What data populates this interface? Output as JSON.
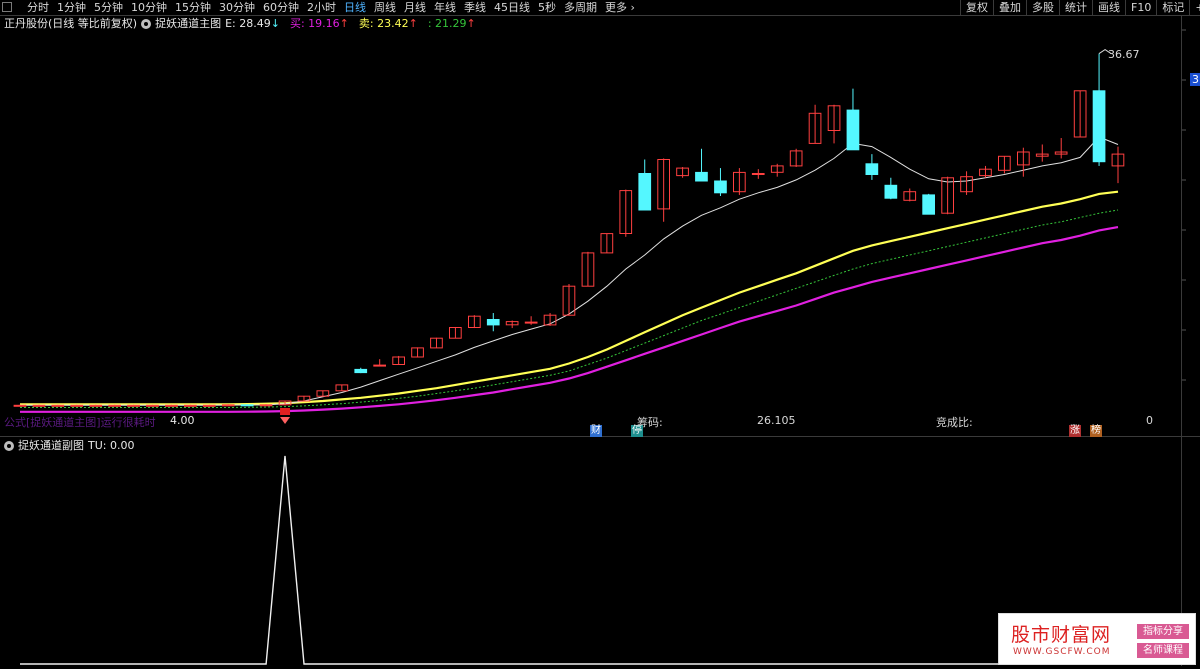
{
  "toolbar": {
    "periods": [
      "分时",
      "1分钟",
      "5分钟",
      "10分钟",
      "15分钟",
      "30分钟",
      "60分钟",
      "2小时",
      "日线",
      "周线",
      "月线",
      "年线",
      "季线",
      "45日线",
      "5秒",
      "多周期",
      "更多 ›"
    ],
    "active_period": "日线",
    "tools": [
      "复权",
      "叠加",
      "多股",
      "统计",
      "画线",
      "F10",
      "标记",
      "+自选"
    ]
  },
  "main_header": {
    "title": "正丹股份(日线 等比前复权)",
    "indicator": "捉妖通道主图",
    "e_label": "E: 28.49",
    "e_arrow": "↓",
    "buy_label": "买: 19.16",
    "buy_arrow": "↑",
    "sell_label": "卖: 23.42",
    "sell_arrow": "↑",
    "extra_label": ": 21.29",
    "extra_arrow": "↑"
  },
  "main_chart": {
    "high_label": "36.67",
    "marker_value": "4.00",
    "formula_text": "公式[捉妖通道主图]运行很耗时",
    "chip_label": "筹码:",
    "chip_value": "26.105",
    "auction_label": "竞成比:",
    "auction_value": "0",
    "badge_cai": "财",
    "badge_ting": "停",
    "badge_zhang": "涨",
    "badge_bang": "榜",
    "edge_value": "3"
  },
  "sub_header": {
    "indicator": "捉妖通道副图",
    "tu_label": "TU: 0.00"
  },
  "watermark": {
    "title": "股市财富网",
    "url": "WWW.GSCFW.COM",
    "tag1": "指标分享",
    "tag2": "名师课程"
  },
  "colors": {
    "up": "#ff4040",
    "down": "#54f7ff",
    "ma_white": "#e0e0e0",
    "yellow": "#ffff55",
    "green": "#35c43a",
    "magenta": "#e020e0",
    "active": "#4fb3ff"
  },
  "chart_data": {
    "type": "candlestick",
    "candles": [
      {
        "o": 3.9,
        "h": 3.95,
        "l": 3.85,
        "c": 3.9
      },
      {
        "o": 3.9,
        "h": 3.95,
        "l": 3.85,
        "c": 3.9
      },
      {
        "o": 3.9,
        "h": 3.95,
        "l": 3.85,
        "c": 3.9
      },
      {
        "o": 3.9,
        "h": 3.95,
        "l": 3.85,
        "c": 3.9
      },
      {
        "o": 3.9,
        "h": 3.95,
        "l": 3.85,
        "c": 3.9
      },
      {
        "o": 3.9,
        "h": 3.95,
        "l": 3.85,
        "c": 3.9
      },
      {
        "o": 3.9,
        "h": 3.95,
        "l": 3.85,
        "c": 3.9
      },
      {
        "o": 3.9,
        "h": 3.95,
        "l": 3.85,
        "c": 3.9
      },
      {
        "o": 3.9,
        "h": 3.95,
        "l": 3.85,
        "c": 3.9
      },
      {
        "o": 3.9,
        "h": 3.95,
        "l": 3.85,
        "c": 3.9
      },
      {
        "o": 3.9,
        "h": 3.95,
        "l": 3.85,
        "c": 3.9
      },
      {
        "o": 3.9,
        "h": 4.0,
        "l": 3.85,
        "c": 3.95
      },
      {
        "o": 3.95,
        "h": 4.0,
        "l": 3.9,
        "c": 3.92
      },
      {
        "o": 3.92,
        "h": 4.0,
        "l": 3.88,
        "c": 3.95
      },
      {
        "o": 3.95,
        "h": 4.3,
        "l": 3.9,
        "c": 4.3
      },
      {
        "o": 4.3,
        "h": 4.75,
        "l": 4.3,
        "c": 4.75
      },
      {
        "o": 4.75,
        "h": 5.25,
        "l": 4.75,
        "c": 5.25
      },
      {
        "o": 5.25,
        "h": 5.8,
        "l": 5.25,
        "c": 5.8
      },
      {
        "o": 7.25,
        "h": 7.4,
        "l": 6.9,
        "c": 6.95
      },
      {
        "o": 7.6,
        "h": 8.2,
        "l": 7.6,
        "c": 7.65
      },
      {
        "o": 7.7,
        "h": 8.5,
        "l": 7.7,
        "c": 8.4
      },
      {
        "o": 8.4,
        "h": 9.3,
        "l": 8.4,
        "c": 9.25
      },
      {
        "o": 9.25,
        "h": 10.2,
        "l": 9.25,
        "c": 10.15
      },
      {
        "o": 10.15,
        "h": 11.2,
        "l": 10.15,
        "c": 11.15
      },
      {
        "o": 11.15,
        "h": 12.3,
        "l": 11.1,
        "c": 12.2
      },
      {
        "o": 11.9,
        "h": 12.5,
        "l": 10.8,
        "c": 11.4
      },
      {
        "o": 11.4,
        "h": 11.8,
        "l": 11.1,
        "c": 11.7
      },
      {
        "o": 11.6,
        "h": 12.2,
        "l": 11.4,
        "c": 11.65
      },
      {
        "o": 11.4,
        "h": 12.5,
        "l": 11.3,
        "c": 12.3
      },
      {
        "o": 12.3,
        "h": 15.2,
        "l": 12.3,
        "c": 15.0
      },
      {
        "o": 15.0,
        "h": 18.2,
        "l": 15.0,
        "c": 18.1
      },
      {
        "o": 18.1,
        "h": 19.9,
        "l": 18.1,
        "c": 19.9
      },
      {
        "o": 19.9,
        "h": 24.0,
        "l": 19.6,
        "c": 23.9
      },
      {
        "o": 25.5,
        "h": 26.8,
        "l": 22.1,
        "c": 22.1
      },
      {
        "o": 22.2,
        "h": 26.9,
        "l": 21.0,
        "c": 26.8
      },
      {
        "o": 25.3,
        "h": 26.1,
        "l": 25.1,
        "c": 26.0
      },
      {
        "o": 25.6,
        "h": 27.8,
        "l": 25.0,
        "c": 24.8
      },
      {
        "o": 24.8,
        "h": 26.0,
        "l": 23.4,
        "c": 23.7
      },
      {
        "o": 23.8,
        "h": 26.0,
        "l": 23.5,
        "c": 25.6
      },
      {
        "o": 25.5,
        "h": 25.9,
        "l": 25.0,
        "c": 25.5
      },
      {
        "o": 25.6,
        "h": 26.4,
        "l": 25.2,
        "c": 26.2
      },
      {
        "o": 26.2,
        "h": 27.8,
        "l": 26.1,
        "c": 27.6
      },
      {
        "o": 28.3,
        "h": 31.9,
        "l": 28.3,
        "c": 31.1
      },
      {
        "o": 29.5,
        "h": 31.9,
        "l": 28.3,
        "c": 31.8
      },
      {
        "o": 31.4,
        "h": 33.4,
        "l": 27.7,
        "c": 27.7
      },
      {
        "o": 26.4,
        "h": 27.3,
        "l": 24.9,
        "c": 25.4
      },
      {
        "o": 24.4,
        "h": 25.1,
        "l": 23.1,
        "c": 23.2
      },
      {
        "o": 23.0,
        "h": 24.1,
        "l": 22.9,
        "c": 23.8
      },
      {
        "o": 23.5,
        "h": 23.6,
        "l": 21.7,
        "c": 21.7
      },
      {
        "o": 21.8,
        "h": 25.2,
        "l": 21.7,
        "c": 25.1
      },
      {
        "o": 23.8,
        "h": 25.7,
        "l": 23.5,
        "c": 25.2
      },
      {
        "o": 25.3,
        "h": 26.2,
        "l": 25.1,
        "c": 25.9
      },
      {
        "o": 25.8,
        "h": 27.1,
        "l": 25.5,
        "c": 27.1
      },
      {
        "o": 26.3,
        "h": 27.9,
        "l": 25.2,
        "c": 27.5
      },
      {
        "o": 27.1,
        "h": 28.2,
        "l": 26.6,
        "c": 27.3
      },
      {
        "o": 27.3,
        "h": 28.8,
        "l": 26.9,
        "c": 27.5
      },
      {
        "o": 28.9,
        "h": 33.2,
        "l": 28.9,
        "c": 33.2
      },
      {
        "o": 33.2,
        "h": 36.67,
        "l": 26.2,
        "c": 26.6
      },
      {
        "o": 26.2,
        "h": 28.0,
        "l": 24.6,
        "c": 27.3
      }
    ],
    "ma_white": [
      3.9,
      3.9,
      3.9,
      3.9,
      3.9,
      3.9,
      3.9,
      3.9,
      3.9,
      3.9,
      3.9,
      3.92,
      3.93,
      3.94,
      4.05,
      4.3,
      4.7,
      5.1,
      5.6,
      6.2,
      6.8,
      7.4,
      8.0,
      8.6,
      9.3,
      9.9,
      10.5,
      11.0,
      11.5,
      12.4,
      13.6,
      15.0,
      16.6,
      17.9,
      19.4,
      20.6,
      21.6,
      22.3,
      23.1,
      23.7,
      24.2,
      24.9,
      25.8,
      26.9,
      28.3,
      28.0,
      27.0,
      25.9,
      25.0,
      24.7,
      24.8,
      25.1,
      25.4,
      25.8,
      26.2,
      26.5,
      27.0,
      28.9,
      28.2
    ],
    "yellow": [
      4.0,
      4.0,
      4.0,
      4.0,
      4.0,
      4.0,
      4.0,
      4.0,
      4.0,
      4.0,
      4.0,
      4.0,
      4.02,
      4.05,
      4.1,
      4.2,
      4.3,
      4.45,
      4.6,
      4.8,
      5.0,
      5.25,
      5.5,
      5.8,
      6.1,
      6.4,
      6.7,
      7.0,
      7.3,
      7.8,
      8.4,
      9.1,
      9.9,
      10.7,
      11.5,
      12.3,
      13.0,
      13.7,
      14.4,
      15.0,
      15.6,
      16.2,
      16.9,
      17.6,
      18.3,
      18.8,
      19.2,
      19.6,
      20.0,
      20.4,
      20.8,
      21.2,
      21.6,
      22.0,
      22.4,
      22.7,
      23.1,
      23.6,
      23.8
    ],
    "green": [
      3.7,
      3.7,
      3.7,
      3.7,
      3.7,
      3.7,
      3.7,
      3.7,
      3.7,
      3.7,
      3.7,
      3.7,
      3.72,
      3.74,
      3.78,
      3.85,
      3.95,
      4.05,
      4.2,
      4.35,
      4.55,
      4.75,
      5.0,
      5.25,
      5.5,
      5.8,
      6.1,
      6.4,
      6.7,
      7.1,
      7.7,
      8.3,
      9.0,
      9.7,
      10.4,
      11.1,
      11.8,
      12.4,
      13.0,
      13.6,
      14.2,
      14.8,
      15.4,
      16.0,
      16.6,
      17.1,
      17.5,
      17.9,
      18.3,
      18.7,
      19.1,
      19.5,
      19.9,
      20.3,
      20.7,
      21.0,
      21.4,
      21.8,
      22.1
    ],
    "magenta": [
      3.3,
      3.3,
      3.3,
      3.3,
      3.3,
      3.3,
      3.3,
      3.3,
      3.3,
      3.3,
      3.3,
      3.3,
      3.31,
      3.33,
      3.36,
      3.42,
      3.5,
      3.6,
      3.72,
      3.85,
      4.0,
      4.18,
      4.38,
      4.6,
      4.85,
      5.1,
      5.4,
      5.7,
      6.0,
      6.4,
      6.9,
      7.5,
      8.1,
      8.7,
      9.3,
      9.9,
      10.5,
      11.1,
      11.7,
      12.2,
      12.7,
      13.2,
      13.8,
      14.4,
      14.9,
      15.4,
      15.8,
      16.2,
      16.6,
      17.0,
      17.4,
      17.8,
      18.2,
      18.6,
      19.0,
      19.3,
      19.7,
      20.2,
      20.5
    ],
    "sub_series": [
      0,
      0,
      0,
      0,
      0,
      0,
      0,
      0,
      0,
      0,
      0,
      0,
      0,
      0,
      1,
      0,
      0,
      0,
      0,
      0,
      0,
      0,
      0,
      0,
      0,
      0,
      0,
      0,
      0,
      0,
      0,
      0,
      0,
      0,
      0,
      0,
      0,
      0,
      0,
      0,
      0,
      0,
      0,
      0,
      0,
      0,
      0,
      0,
      0,
      0,
      0,
      0,
      0,
      0,
      0,
      0,
      0,
      0,
      0
    ]
  }
}
